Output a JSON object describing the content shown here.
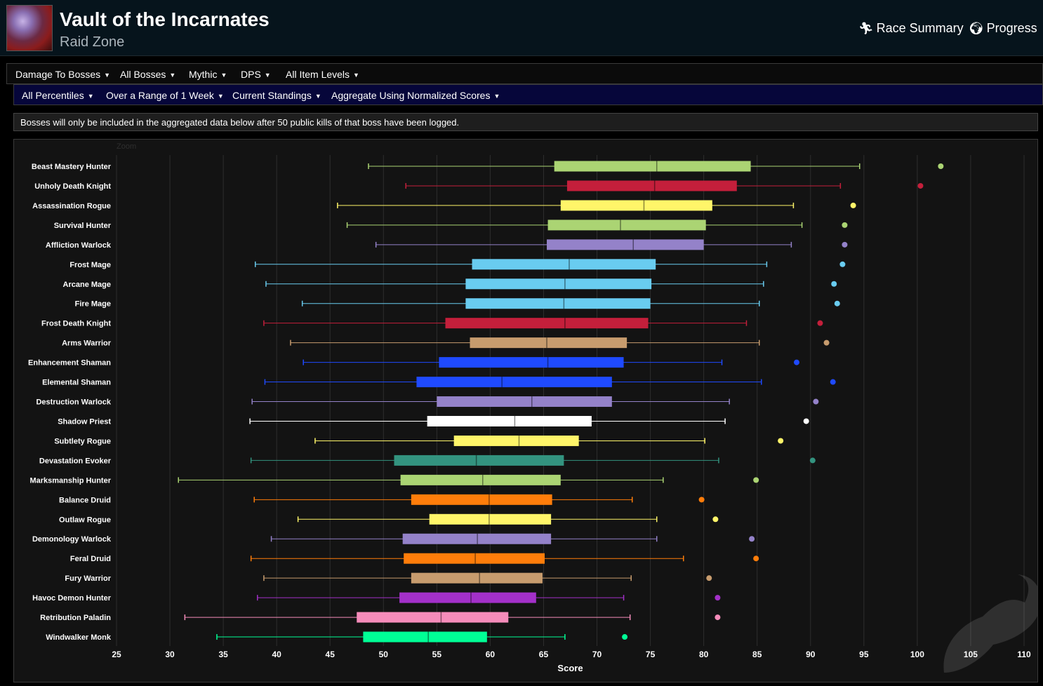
{
  "header": {
    "title": "Vault of the Incarnates",
    "subtitle": "Raid Zone",
    "race_summary": "Race Summary",
    "progress": "Progress"
  },
  "filters_row1": [
    {
      "label": "Damage To Bosses"
    },
    {
      "label": "All Bosses"
    },
    {
      "label": "Mythic"
    },
    {
      "label": "DPS"
    },
    {
      "label": "All Item Levels"
    }
  ],
  "filters_row2": [
    {
      "label": "All Percentiles"
    },
    {
      "label": "Over a Range of 1 Week"
    },
    {
      "label": "Current Standings"
    },
    {
      "label": "Aggregate Using Normalized Scores"
    }
  ],
  "notice": "Bosses will only be included in the aggregated data below after 50 public kills of that boss have been logged.",
  "chart": {
    "zoom_label": "Zoom"
  },
  "chart_data": {
    "type": "boxplot",
    "orientation": "horizontal",
    "xlabel": "Score",
    "xlim": [
      25,
      110
    ],
    "xticks": [
      25,
      30,
      35,
      40,
      45,
      50,
      55,
      60,
      65,
      70,
      75,
      80,
      85,
      90,
      95,
      100,
      105,
      110
    ],
    "grid": true,
    "series": [
      {
        "name": "Beast Mastery Hunter",
        "color": "#abd473",
        "min": 48.6,
        "q1": 66.0,
        "median": 75.6,
        "q3": 84.4,
        "max": 94.6,
        "outlier": 102.2
      },
      {
        "name": "Unholy Death Knight",
        "color": "#c41f3b",
        "min": 52.1,
        "q1": 67.2,
        "median": 75.4,
        "q3": 83.1,
        "max": 92.8,
        "outlier": 100.3
      },
      {
        "name": "Assassination Rogue",
        "color": "#fff569",
        "min": 45.7,
        "q1": 66.6,
        "median": 74.4,
        "q3": 80.8,
        "max": 88.4,
        "outlier": 94.0
      },
      {
        "name": "Survival Hunter",
        "color": "#abd473",
        "min": 46.6,
        "q1": 65.4,
        "median": 72.2,
        "q3": 80.2,
        "max": 89.2,
        "outlier": 93.2
      },
      {
        "name": "Affliction Warlock",
        "color": "#9482c9",
        "min": 49.3,
        "q1": 65.3,
        "median": 73.4,
        "q3": 80.0,
        "max": 88.2,
        "outlier": 93.2
      },
      {
        "name": "Frost Mage",
        "color": "#69ccf0",
        "min": 38.0,
        "q1": 58.3,
        "median": 67.4,
        "q3": 75.5,
        "max": 85.9,
        "outlier": 93.0
      },
      {
        "name": "Arcane Mage",
        "color": "#69ccf0",
        "min": 39.0,
        "q1": 57.7,
        "median": 67.0,
        "q3": 75.1,
        "max": 85.6,
        "outlier": 92.2
      },
      {
        "name": "Fire Mage",
        "color": "#69ccf0",
        "min": 42.4,
        "q1": 57.7,
        "median": 66.9,
        "q3": 75.0,
        "max": 85.2,
        "outlier": 92.5
      },
      {
        "name": "Frost Death Knight",
        "color": "#c41f3b",
        "min": 38.8,
        "q1": 55.8,
        "median": 67.0,
        "q3": 74.8,
        "max": 84.0,
        "outlier": 90.9
      },
      {
        "name": "Arms Warrior",
        "color": "#c79c6e",
        "min": 41.3,
        "q1": 58.1,
        "median": 65.3,
        "q3": 72.8,
        "max": 85.2,
        "outlier": 91.5
      },
      {
        "name": "Enhancement Shaman",
        "color": "#1f4aff",
        "min": 42.5,
        "q1": 55.2,
        "median": 65.4,
        "q3": 72.5,
        "max": 81.7,
        "outlier": 88.7
      },
      {
        "name": "Elemental Shaman",
        "color": "#1f4aff",
        "min": 38.9,
        "q1": 53.1,
        "median": 61.1,
        "q3": 71.4,
        "max": 85.4,
        "outlier": 92.1
      },
      {
        "name": "Destruction Warlock",
        "color": "#9482c9",
        "min": 37.7,
        "q1": 55.0,
        "median": 63.9,
        "q3": 71.4,
        "max": 82.4,
        "outlier": 90.5
      },
      {
        "name": "Shadow Priest",
        "color": "#ffffff",
        "min": 37.5,
        "q1": 54.1,
        "median": 62.3,
        "q3": 69.5,
        "max": 82.0,
        "outlier": 89.6
      },
      {
        "name": "Subtlety Rogue",
        "color": "#fff569",
        "min": 43.6,
        "q1": 56.6,
        "median": 62.7,
        "q3": 68.3,
        "max": 80.1,
        "outlier": 87.2
      },
      {
        "name": "Devastation Evoker",
        "color": "#33937f",
        "min": 37.6,
        "q1": 51.0,
        "median": 58.7,
        "q3": 66.9,
        "max": 81.4,
        "outlier": 90.2
      },
      {
        "name": "Marksmanship Hunter",
        "color": "#abd473",
        "min": 30.8,
        "q1": 51.6,
        "median": 59.3,
        "q3": 66.6,
        "max": 76.2,
        "outlier": 84.9
      },
      {
        "name": "Balance Druid",
        "color": "#ff7d0a",
        "min": 37.9,
        "q1": 52.6,
        "median": 59.9,
        "q3": 65.8,
        "max": 73.3,
        "outlier": 79.8
      },
      {
        "name": "Outlaw Rogue",
        "color": "#fff569",
        "min": 42.0,
        "q1": 54.3,
        "median": 59.9,
        "q3": 65.7,
        "max": 75.6,
        "outlier": 81.1
      },
      {
        "name": "Demonology Warlock",
        "color": "#9482c9",
        "min": 39.5,
        "q1": 51.8,
        "median": 58.8,
        "q3": 65.7,
        "max": 75.6,
        "outlier": 84.5
      },
      {
        "name": "Feral Druid",
        "color": "#ff7d0a",
        "min": 37.6,
        "q1": 51.9,
        "median": 58.6,
        "q3": 65.1,
        "max": 78.1,
        "outlier": 84.9
      },
      {
        "name": "Fury Warrior",
        "color": "#c79c6e",
        "min": 38.8,
        "q1": 52.6,
        "median": 59.0,
        "q3": 64.9,
        "max": 73.2,
        "outlier": 80.5
      },
      {
        "name": "Havoc Demon Hunter",
        "color": "#a330c9",
        "min": 38.2,
        "q1": 51.5,
        "median": 58.2,
        "q3": 64.3,
        "max": 72.5,
        "outlier": 81.3
      },
      {
        "name": "Retribution Paladin",
        "color": "#f58cba",
        "min": 31.4,
        "q1": 47.5,
        "median": 55.4,
        "q3": 61.7,
        "max": 73.1,
        "outlier": 81.3
      },
      {
        "name": "Windwalker Monk",
        "color": "#00ff96",
        "min": 34.4,
        "q1": 48.1,
        "median": 54.2,
        "q3": 59.7,
        "max": 67.0,
        "outlier": 72.6
      }
    ]
  }
}
